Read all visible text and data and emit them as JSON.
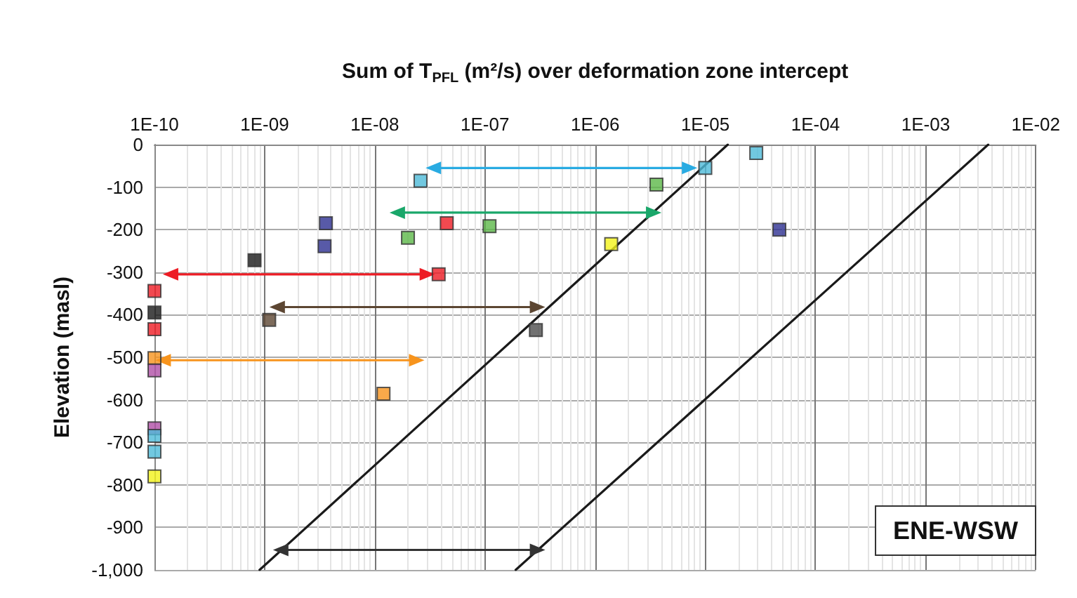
{
  "chart_data": {
    "type": "scatter",
    "xlabel": "Sum of T$_{PFL}$ (m²/s) over deformation zone intercept",
    "ylabel": "Elevation (masl)",
    "log": "x",
    "grid": true,
    "marker": "square",
    "annotations": [
      "ENE-WSW"
    ],
    "xlim": [
      1e-10,
      0.01
    ],
    "xticks": [
      {
        "value": 1e-10,
        "label": "1E-10"
      },
      {
        "value": 1e-09,
        "label": "1E-09"
      },
      {
        "value": 1e-08,
        "label": "1E-08"
      },
      {
        "value": 1e-07,
        "label": "1E-07"
      },
      {
        "value": 1e-06,
        "label": "1E-06"
      },
      {
        "value": 1e-05,
        "label": "1E-05"
      },
      {
        "value": 0.0001,
        "label": "1E-04"
      },
      {
        "value": 0.001,
        "label": "1E-03"
      },
      {
        "value": 0.01,
        "label": "1E-02"
      }
    ],
    "ylim": [
      -1000,
      0
    ],
    "yticks": [
      {
        "value": -1000,
        "label": "-1,000"
      },
      -900,
      -800,
      -700,
      -600,
      -500,
      -400,
      -300,
      -200,
      -100,
      0
    ],
    "series": [
      {
        "type": "line",
        "marker": "none",
        "color": "#1a1a1a",
        "x": [
          9e-10,
          1.6e-05
        ],
        "values": [
          -1000,
          0
        ]
      },
      {
        "type": "line",
        "marker": "none",
        "color": "#1a1a1a",
        "x": [
          1.9e-07,
          0.0037
        ],
        "values": [
          -1000,
          0
        ]
      },
      {
        "type": "line",
        "marker": "triangle",
        "color": "#29abe2",
        "x": [
          3.4e-08,
          7.2e-06
        ],
        "values": [
          -55,
          -55
        ]
      },
      {
        "type": "line",
        "marker": "triangle",
        "color": "#1aa76a",
        "x": [
          1.6e-08,
          3.4e-06
        ],
        "values": [
          -160,
          -160
        ]
      },
      {
        "type": "line",
        "marker": "triangle",
        "color": "#ed1c24",
        "x": [
          1.4e-10,
          3e-08
        ],
        "values": [
          -305,
          -305
        ]
      },
      {
        "type": "line",
        "marker": "triangle",
        "color": "#5c4632",
        "x": [
          1.3e-09,
          3e-07
        ],
        "values": [
          -382,
          -382
        ]
      },
      {
        "type": "line",
        "marker": "triangle",
        "color": "#f7941d",
        "x": [
          1.2e-10,
          2.4e-08
        ],
        "values": [
          -507,
          -507
        ]
      },
      {
        "type": "line",
        "marker": "triangle",
        "color": "#333333",
        "x": [
          1.4e-09,
          3e-07
        ],
        "values": [
          -953,
          -953
        ]
      },
      {
        "color": "#2e3192",
        "x": [
          3.6e-09,
          3.5e-09,
          4.7e-05
        ],
        "values": [
          -185,
          -239,
          -200
        ]
      },
      {
        "color": "#ed1c24",
        "x": [
          4.5e-08,
          3.8e-08,
          1e-10,
          1e-10
        ],
        "values": [
          -185,
          -305,
          -344,
          -434
        ]
      },
      {
        "color": "#5cb848",
        "x": [
          2e-08,
          1.1e-07,
          3.6e-06
        ],
        "values": [
          -219,
          -192,
          -94
        ]
      },
      {
        "color": "#1a1a1a",
        "x": [
          8.1e-10,
          1e-10
        ],
        "values": [
          -272,
          -395
        ]
      },
      {
        "color": "#5c4632",
        "x": [
          1.1e-09
        ],
        "values": [
          -412
        ]
      },
      {
        "color": "#4d4d4d",
        "x": [
          2.9e-07
        ],
        "values": [
          -436
        ]
      },
      {
        "color": "#f7941d",
        "x": [
          1.2e-08,
          1e-10
        ],
        "values": [
          -586,
          -502
        ]
      },
      {
        "color": "#b04fa6",
        "x": [
          1e-10,
          1e-10
        ],
        "values": [
          -531,
          -667
        ]
      },
      {
        "color": "#f2f21a",
        "x": [
          1.4e-06,
          1e-10
        ],
        "values": [
          -234,
          -780
        ]
      },
      {
        "color": "#4ebad8",
        "x": [
          2.6e-08,
          1e-05,
          2.9e-05,
          1e-10,
          1e-10
        ],
        "values": [
          -85,
          -55,
          -20,
          -685,
          -722
        ]
      }
    ]
  }
}
